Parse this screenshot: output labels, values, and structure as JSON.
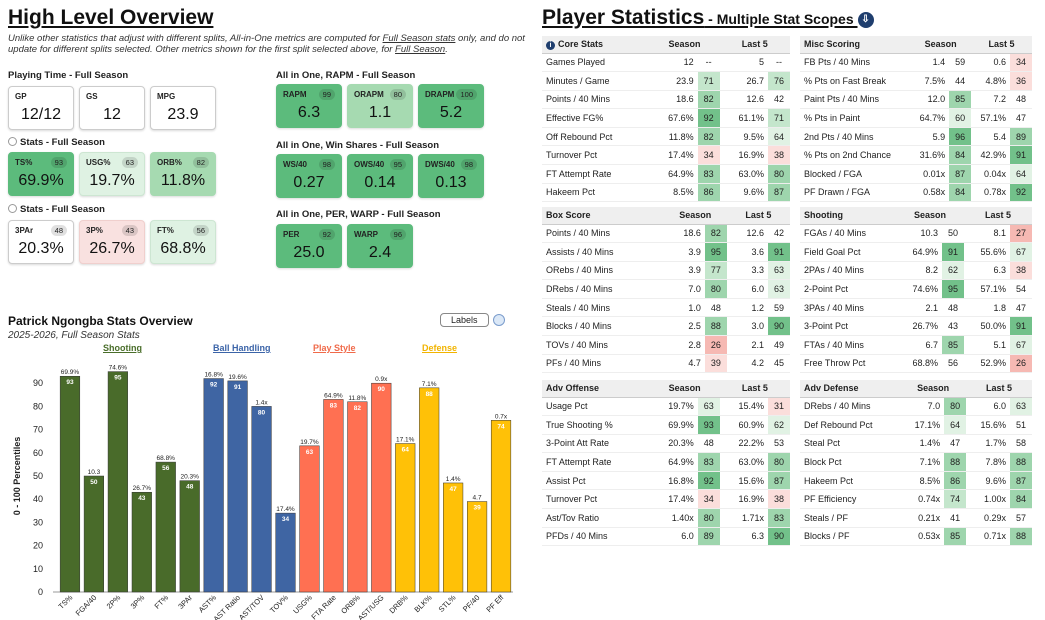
{
  "left": {
    "title": "High Level Overview",
    "note_pre": "Unlike other statistics that adjust with different splits, All-in-One metrics are computed for ",
    "note_link1": "Full Season stats",
    "note_mid": " only, and do not update for different splits selected. Other metrics shown for the first split selected above, for ",
    "note_link2": "Full Season",
    "note_end": ".",
    "playing_time": {
      "label": "Playing Time - Full Season",
      "cards": [
        {
          "label": "GP",
          "value": "12/12"
        },
        {
          "label": "GS",
          "value": "12"
        },
        {
          "label": "MPG",
          "value": "23.9"
        }
      ]
    },
    "stats1": {
      "label": "Stats - Full Season",
      "cards": [
        {
          "label": "TS%",
          "value": "69.9%",
          "pct": "93"
        },
        {
          "label": "USG%",
          "value": "19.7%",
          "pct": "63"
        },
        {
          "label": "ORB%",
          "value": "11.8%",
          "pct": "82"
        }
      ]
    },
    "stats2": {
      "label": "Stats - Full Season",
      "cards": [
        {
          "label": "3PAr",
          "value": "20.3%",
          "pct": "48"
        },
        {
          "label": "3P%",
          "value": "26.7%",
          "pct": "43"
        },
        {
          "label": "FT%",
          "value": "68.8%",
          "pct": "56"
        }
      ]
    },
    "rapm": {
      "label": "All in One, RAPM - Full Season",
      "cards": [
        {
          "label": "RAPM",
          "value": "6.3",
          "pct": "99"
        },
        {
          "label": "ORAPM",
          "value": "1.1",
          "pct": "80"
        },
        {
          "label": "DRAPM",
          "value": "5.2",
          "pct": "100"
        }
      ]
    },
    "winshares": {
      "label": "All in One, Win Shares - Full Season",
      "cards": [
        {
          "label": "WS/40",
          "value": "0.27",
          "pct": "98"
        },
        {
          "label": "OWS/40",
          "value": "0.14",
          "pct": "95"
        },
        {
          "label": "DWS/40",
          "value": "0.13",
          "pct": "98"
        }
      ]
    },
    "per": {
      "label": "All in One, PER, WARP - Full Season",
      "cards": [
        {
          "label": "PER",
          "value": "25.0",
          "pct": "92"
        },
        {
          "label": "WARP",
          "value": "2.4",
          "pct": "96"
        }
      ]
    }
  },
  "chart": {
    "title": "Patrick Ngongba Stats Overview",
    "subtitle": "2025-2026, Full Season Stats",
    "labels_button": "Labels",
    "categories": [
      {
        "name": "Shooting",
        "color": "#4a6e2a"
      },
      {
        "name": "Ball Handling",
        "color": "#3b64a8"
      },
      {
        "name": "Play Style",
        "color": "#f06a4a"
      },
      {
        "name": "Defense",
        "color": "#f2b400"
      }
    ]
  },
  "chart_data": {
    "type": "bar",
    "ylabel": "0 - 100 Percentiles",
    "ylim": [
      0,
      100
    ],
    "yticks": [
      0,
      10,
      20,
      30,
      40,
      50,
      60,
      70,
      80,
      90
    ],
    "colors": {
      "Shooting": "#496b2a",
      "Ball Handling": "#3f65a3",
      "Play Style": "#ff7052",
      "Defense": "#ffc107"
    },
    "bars": [
      {
        "label": "TS%",
        "value": 93,
        "raw": "69.9%",
        "group": "Shooting"
      },
      {
        "label": "FGA/40",
        "value": 50,
        "raw": "10.3",
        "group": "Shooting"
      },
      {
        "label": "2P%",
        "value": 95,
        "raw": "74.6%",
        "group": "Shooting"
      },
      {
        "label": "3P%",
        "value": 43,
        "raw": "26.7%",
        "group": "Shooting"
      },
      {
        "label": "FT%",
        "value": 56,
        "raw": "68.8%",
        "group": "Shooting"
      },
      {
        "label": "3PAr",
        "value": 48,
        "raw": "20.3%",
        "group": "Shooting"
      },
      {
        "label": "AST%",
        "value": 92,
        "raw": "16.8%",
        "group": "Ball Handling"
      },
      {
        "label": "AST Ratio",
        "value": 91,
        "raw": "19.6%",
        "group": "Ball Handling"
      },
      {
        "label": "AST/TOV",
        "value": 80,
        "raw": "1.4x",
        "group": "Ball Handling"
      },
      {
        "label": "TOV%",
        "value": 34,
        "raw": "17.4%",
        "group": "Ball Handling"
      },
      {
        "label": "USG%",
        "value": 63,
        "raw": "19.7%",
        "group": "Play Style"
      },
      {
        "label": "FTA Rate",
        "value": 83,
        "raw": "64.9%",
        "group": "Play Style"
      },
      {
        "label": "ORB%",
        "value": 82,
        "raw": "11.8%",
        "group": "Play Style"
      },
      {
        "label": "AST/USG",
        "value": 90,
        "raw": "0.9x",
        "group": "Play Style"
      },
      {
        "label": "DRB%",
        "value": 64,
        "raw": "17.1%",
        "group": "Defense"
      },
      {
        "label": "BLK%",
        "value": 88,
        "raw": "7.1%",
        "group": "Defense"
      },
      {
        "label": "STL%",
        "value": 47,
        "raw": "1.4%",
        "group": "Defense"
      },
      {
        "label": "PF/40",
        "value": 39,
        "raw": "4.7",
        "group": "Defense"
      },
      {
        "label": "PF Eff",
        "value": 74,
        "raw": "0.7x",
        "group": "Defense"
      }
    ]
  },
  "right": {
    "title": "Player Statistics",
    "title_small": " - Multiple Stat Scopes ",
    "tables": {
      "core": {
        "title": "Core Stats",
        "col1": "Season",
        "col2": "Last 5",
        "rows": [
          [
            "Games Played",
            "12",
            "--",
            "5",
            "--"
          ],
          [
            "Minutes / Game",
            "23.9",
            "71",
            "26.7",
            "76"
          ],
          [
            "Points / 40 Mins",
            "18.6",
            "82",
            "12.6",
            "42"
          ],
          [
            "Effective FG%",
            "67.6%",
            "92",
            "61.1%",
            "71"
          ],
          [
            "Off Rebound Pct",
            "11.8%",
            "82",
            "9.5%",
            "64"
          ],
          [
            "Turnover Pct",
            "17.4%",
            "34",
            "16.9%",
            "38"
          ],
          [
            "FT Attempt Rate",
            "64.9%",
            "83",
            "63.0%",
            "80"
          ],
          [
            "Hakeem Pct",
            "8.5%",
            "86",
            "9.6%",
            "87"
          ]
        ]
      },
      "misc": {
        "title": "Misc Scoring",
        "col1": "Season",
        "col2": "Last 5",
        "rows": [
          [
            "FB Pts / 40 Mins",
            "1.4",
            "59",
            "0.6",
            "34"
          ],
          [
            "% Pts on Fast Break",
            "7.5%",
            "44",
            "4.8%",
            "36"
          ],
          [
            "Paint Pts / 40 Mins",
            "12.0",
            "85",
            "7.2",
            "48"
          ],
          [
            "% Pts in Paint",
            "64.7%",
            "60",
            "57.1%",
            "47"
          ],
          [
            "2nd Pts / 40 Mins",
            "5.9",
            "96",
            "5.4",
            "89"
          ],
          [
            "% Pts on 2nd Chance",
            "31.6%",
            "84",
            "42.9%",
            "91"
          ],
          [
            "Blocked / FGA",
            "0.01x",
            "87",
            "0.04x",
            "64"
          ],
          [
            "PF Drawn / FGA",
            "0.58x",
            "84",
            "0.78x",
            "92"
          ]
        ]
      },
      "box": {
        "title": "Box Score",
        "col1": "Season",
        "col2": "Last 5",
        "rows": [
          [
            "Points / 40 Mins",
            "18.6",
            "82",
            "12.6",
            "42"
          ],
          [
            "Assists / 40 Mins",
            "3.9",
            "95",
            "3.6",
            "91"
          ],
          [
            "ORebs / 40 Mins",
            "3.9",
            "77",
            "3.3",
            "63"
          ],
          [
            "DRebs / 40 Mins",
            "7.0",
            "80",
            "6.0",
            "63"
          ],
          [
            "Steals / 40 Mins",
            "1.0",
            "48",
            "1.2",
            "59"
          ],
          [
            "Blocks / 40 Mins",
            "2.5",
            "88",
            "3.0",
            "90"
          ],
          [
            "TOVs / 40 Mins",
            "2.8",
            "26",
            "2.1",
            "49"
          ],
          [
            "PFs / 40 Mins",
            "4.7",
            "39",
            "4.2",
            "45"
          ]
        ]
      },
      "shooting": {
        "title": "Shooting",
        "col1": "Season",
        "col2": "Last 5",
        "rows": [
          [
            "FGAs / 40 Mins",
            "10.3",
            "50",
            "8.1",
            "27"
          ],
          [
            "Field Goal Pct",
            "64.9%",
            "91",
            "55.6%",
            "67"
          ],
          [
            "2PAs / 40 Mins",
            "8.2",
            "62",
            "6.3",
            "38"
          ],
          [
            "2-Point Pct",
            "74.6%",
            "95",
            "57.1%",
            "54"
          ],
          [
            "3PAs / 40 Mins",
            "2.1",
            "48",
            "1.8",
            "47"
          ],
          [
            "3-Point Pct",
            "26.7%",
            "43",
            "50.0%",
            "91"
          ],
          [
            "FTAs / 40 Mins",
            "6.7",
            "85",
            "5.1",
            "67"
          ],
          [
            "Free Throw Pct",
            "68.8%",
            "56",
            "52.9%",
            "26"
          ]
        ]
      },
      "advoff": {
        "title": "Adv Offense",
        "col1": "Season",
        "col2": "Last 5",
        "rows": [
          [
            "Usage Pct",
            "19.7%",
            "63",
            "15.4%",
            "31"
          ],
          [
            "True Shooting %",
            "69.9%",
            "93",
            "60.9%",
            "62"
          ],
          [
            "3-Point Att Rate",
            "20.3%",
            "48",
            "22.2%",
            "53"
          ],
          [
            "FT Attempt Rate",
            "64.9%",
            "83",
            "63.0%",
            "80"
          ],
          [
            "Assist Pct",
            "16.8%",
            "92",
            "15.6%",
            "87"
          ],
          [
            "Turnover Pct",
            "17.4%",
            "34",
            "16.9%",
            "38"
          ],
          [
            "Ast/Tov Ratio",
            "1.40x",
            "80",
            "1.71x",
            "83"
          ],
          [
            "PFDs / 40 Mins",
            "6.0",
            "89",
            "6.3",
            "90"
          ]
        ]
      },
      "advdef": {
        "title": "Adv Defense",
        "col1": "Season",
        "col2": "Last 5",
        "rows": [
          [
            "DRebs / 40 Mins",
            "7.0",
            "80",
            "6.0",
            "63"
          ],
          [
            "Def Rebound Pct",
            "17.1%",
            "64",
            "15.6%",
            "51"
          ],
          [
            "Steal Pct",
            "1.4%",
            "47",
            "1.7%",
            "58"
          ],
          [
            "Block Pct",
            "7.1%",
            "88",
            "7.8%",
            "88"
          ],
          [
            "Hakeem Pct",
            "8.5%",
            "86",
            "9.6%",
            "87"
          ],
          [
            "PF Efficiency",
            "0.74x",
            "74",
            "1.00x",
            "84"
          ],
          [
            "Steals / PF",
            "0.21x",
            "41",
            "0.29x",
            "57"
          ],
          [
            "Blocks / PF",
            "0.53x",
            "85",
            "0.71x",
            "88"
          ]
        ]
      }
    }
  }
}
